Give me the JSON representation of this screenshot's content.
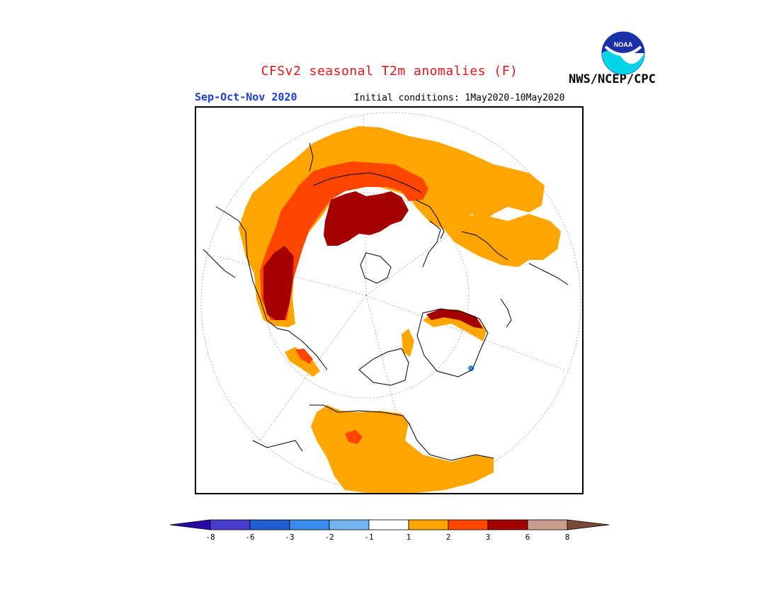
{
  "header": {
    "title": "CFSv2 seasonal T2m anomalies (F)",
    "season": "Sep-Oct-Nov 2020",
    "initial_conditions": "Initial conditions: 1May2020-10May2020",
    "agency": "NWS/NCEP/CPC",
    "logo_text": "NOAA"
  },
  "colors": {
    "title": "#e8141b",
    "season": "#1c3fd6",
    "anom_1_2": "#ffa500",
    "anom_2_3": "#ff4500",
    "anom_3_6": "#a50000",
    "anom_6_8": "#c79e8e",
    "anom_gt_8": "#7a4a36",
    "anom_neg": "#3a8bea"
  },
  "legend": {
    "segments": [
      {
        "color": "#2a0aa6",
        "label": ""
      },
      {
        "color": "#4a3bd0",
        "label": "-8"
      },
      {
        "color": "#1f5fd0",
        "label": "-6"
      },
      {
        "color": "#3a8bea",
        "label": "-3"
      },
      {
        "color": "#74b4f0",
        "label": "-2"
      },
      {
        "color": "#ffffff",
        "label": "-1"
      },
      {
        "color": "#ffa500",
        "label": "1"
      },
      {
        "color": "#ff4500",
        "label": "2"
      },
      {
        "color": "#a50000",
        "label": "3"
      },
      {
        "color": "#c79e8e",
        "label": "6"
      },
      {
        "color": "#7a4a36",
        "label": "8"
      }
    ]
  }
}
